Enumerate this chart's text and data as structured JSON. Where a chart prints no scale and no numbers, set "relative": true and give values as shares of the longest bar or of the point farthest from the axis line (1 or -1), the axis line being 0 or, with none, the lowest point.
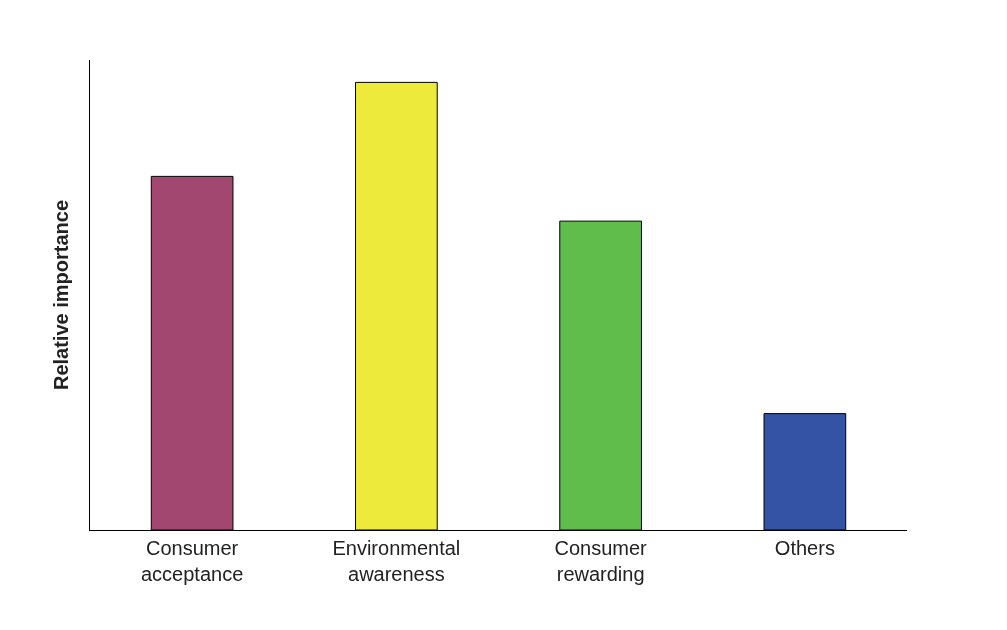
{
  "chart_data": {
    "type": "bar",
    "ylabel": "Relative importance",
    "relative": true,
    "categories": [
      "Consumer acceptance",
      "Environmental awareness",
      "Consumer rewarding",
      "Others"
    ],
    "values": [
      0.79,
      1,
      0.69,
      0.26
    ],
    "colors": [
      "#a24870",
      "#eeea3c",
      "#60bd4b",
      "#3553a4"
    ]
  }
}
